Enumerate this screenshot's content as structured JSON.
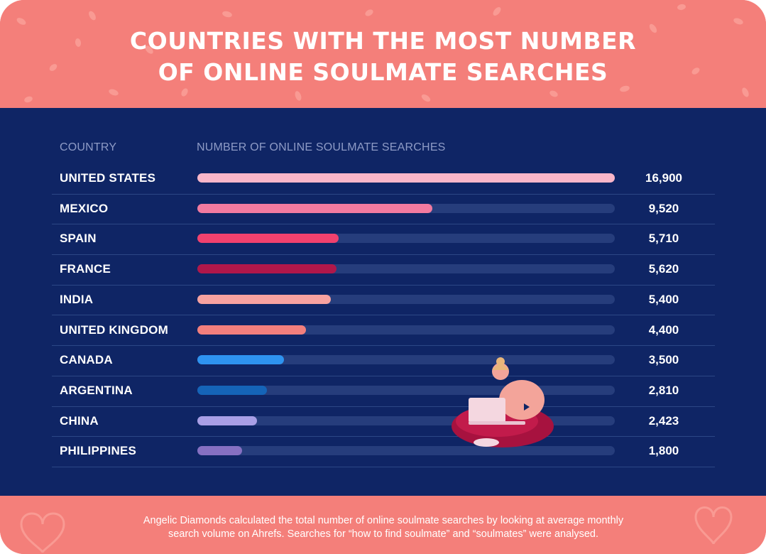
{
  "title_line1": "COUNTRIES WITH THE MOST NUMBER",
  "title_line2": "OF ONLINE SOULMATE SEARCHES",
  "columns": {
    "country": "COUNTRY",
    "searches": "NUMBER OF ONLINE SOULMATE SEARCHES"
  },
  "footnote_line1": "Angelic Diamonds calculated the total number of online soulmate searches by looking at average monthly",
  "footnote_line2": "search volume on Ahrefs. Searches for “how to find soulmate” and “soulmates” were analysed.",
  "colors": {
    "header_bg": "#F47F7A",
    "panel_bg": "#0F2565",
    "track": "#263D7C"
  },
  "chart_data": {
    "type": "bar",
    "orientation": "horizontal",
    "xlim": [
      0,
      16900
    ],
    "grid": false,
    "categories": [
      "UNITED STATES",
      "MEXICO",
      "SPAIN",
      "FRANCE",
      "INDIA",
      "UNITED KINGDOM",
      "CANADA",
      "ARGENTINA",
      "CHINA",
      "PHILIPPINES"
    ],
    "values": [
      16900,
      9520,
      5710,
      5620,
      5400,
      4400,
      3500,
      2810,
      2423,
      1800
    ],
    "value_labels": [
      "16,900",
      "9,520",
      "5,710",
      "5,620",
      "5,400",
      "4,400",
      "3,500",
      "2,810",
      "2,423",
      "1,800"
    ],
    "bar_colors": [
      "#F9B6C9",
      "#F27AA0",
      "#F1416E",
      "#B0174A",
      "#F7A2A0",
      "#F27F7D",
      "#2E93F0",
      "#1564B8",
      "#A99FE6",
      "#8670C2"
    ]
  }
}
